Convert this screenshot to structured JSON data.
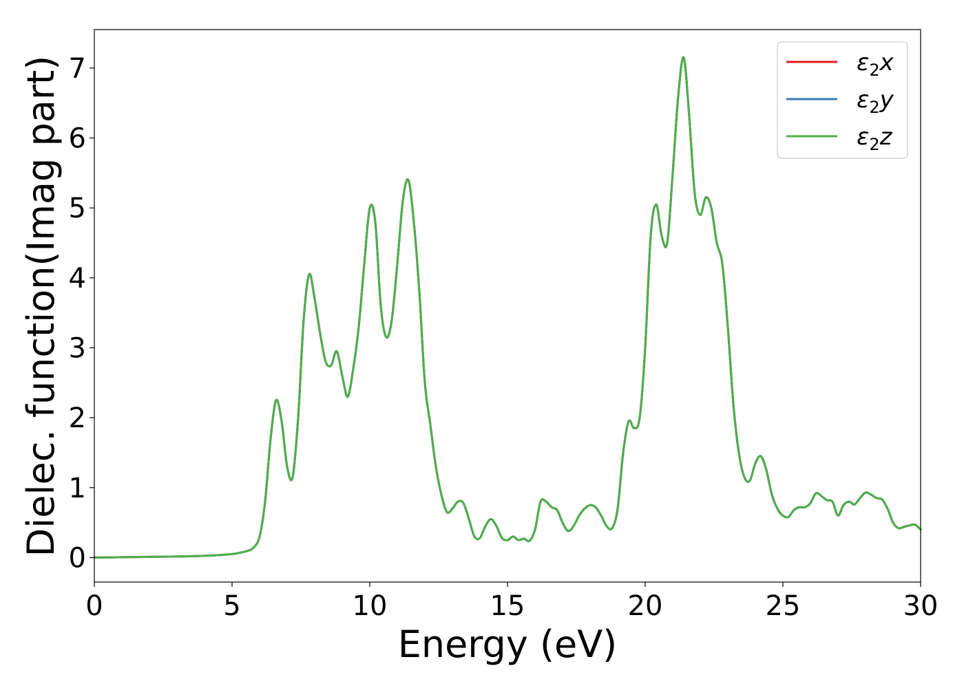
{
  "chart_data": {
    "type": "line",
    "title": "",
    "xlabel": "Energy (eV)",
    "ylabel": "Dielec. function(Imag part)",
    "xlim": [
      0,
      30
    ],
    "ylim": [
      -0.35,
      7.55
    ],
    "xticks": [
      0,
      5,
      10,
      15,
      20,
      25,
      30
    ],
    "yticks": [
      0,
      1,
      2,
      3,
      4,
      5,
      6,
      7
    ],
    "grid": false,
    "legend_position": "top-right",
    "x": [
      0,
      1,
      2,
      3,
      4,
      4.5,
      5,
      5.3,
      5.6,
      5.8,
      6.0,
      6.2,
      6.4,
      6.6,
      6.8,
      7.0,
      7.2,
      7.4,
      7.6,
      7.8,
      8.0,
      8.2,
      8.4,
      8.6,
      8.8,
      9.0,
      9.2,
      9.4,
      9.6,
      9.8,
      10.0,
      10.2,
      10.4,
      10.6,
      10.8,
      11.0,
      11.2,
      11.4,
      11.6,
      11.8,
      12.0,
      12.2,
      12.4,
      12.6,
      12.8,
      13.0,
      13.2,
      13.4,
      13.6,
      13.8,
      14.0,
      14.2,
      14.4,
      14.6,
      14.8,
      15.0,
      15.2,
      15.4,
      15.6,
      15.8,
      16.0,
      16.2,
      16.4,
      16.6,
      16.8,
      17.0,
      17.2,
      17.4,
      17.6,
      17.8,
      18.0,
      18.2,
      18.4,
      18.6,
      18.8,
      19.0,
      19.2,
      19.4,
      19.6,
      19.8,
      20.0,
      20.2,
      20.4,
      20.6,
      20.8,
      21.0,
      21.2,
      21.4,
      21.6,
      21.8,
      22.0,
      22.2,
      22.4,
      22.6,
      22.8,
      23.0,
      23.2,
      23.4,
      23.6,
      23.8,
      24.0,
      24.2,
      24.4,
      24.6,
      24.8,
      25.0,
      25.2,
      25.4,
      25.6,
      25.8,
      26.0,
      26.2,
      26.4,
      26.6,
      26.8,
      27.0,
      27.2,
      27.4,
      27.6,
      27.8,
      28.0,
      28.2,
      28.4,
      28.6,
      28.8,
      29.0,
      29.2,
      29.4,
      29.6,
      29.8,
      30.0
    ],
    "series": [
      {
        "name": "ε₂x",
        "color": "#e41a1c",
        "values": [
          0.0,
          0.005,
          0.01,
          0.015,
          0.025,
          0.035,
          0.05,
          0.07,
          0.1,
          0.15,
          0.3,
          0.8,
          1.7,
          2.25,
          1.95,
          1.3,
          1.15,
          2.0,
          3.4,
          4.05,
          3.7,
          3.2,
          2.8,
          2.75,
          2.95,
          2.6,
          2.3,
          2.7,
          3.3,
          4.2,
          5.0,
          4.8,
          3.6,
          3.15,
          3.4,
          4.2,
          5.1,
          5.4,
          4.8,
          3.8,
          2.5,
          1.9,
          1.3,
          0.9,
          0.65,
          0.7,
          0.8,
          0.78,
          0.55,
          0.3,
          0.28,
          0.45,
          0.55,
          0.45,
          0.28,
          0.25,
          0.3,
          0.25,
          0.27,
          0.24,
          0.4,
          0.8,
          0.8,
          0.72,
          0.68,
          0.5,
          0.38,
          0.45,
          0.6,
          0.7,
          0.75,
          0.72,
          0.6,
          0.45,
          0.42,
          0.7,
          1.5,
          1.95,
          1.85,
          2.0,
          3.0,
          4.6,
          5.05,
          4.6,
          4.5,
          5.5,
          6.6,
          7.15,
          6.3,
          5.2,
          4.9,
          5.15,
          5.0,
          4.5,
          4.2,
          3.3,
          2.2,
          1.5,
          1.15,
          1.1,
          1.35,
          1.45,
          1.25,
          0.9,
          0.7,
          0.6,
          0.58,
          0.68,
          0.72,
          0.72,
          0.78,
          0.92,
          0.88,
          0.82,
          0.8,
          0.6,
          0.75,
          0.8,
          0.76,
          0.85,
          0.93,
          0.9,
          0.85,
          0.83,
          0.7,
          0.5,
          0.42,
          0.44,
          0.46,
          0.47,
          0.4
        ]
      },
      {
        "name": "ε₂y",
        "color": "#377eb8",
        "values": [
          0.0,
          0.005,
          0.01,
          0.015,
          0.025,
          0.035,
          0.05,
          0.07,
          0.1,
          0.15,
          0.3,
          0.8,
          1.7,
          2.25,
          1.95,
          1.3,
          1.15,
          2.0,
          3.4,
          4.05,
          3.7,
          3.2,
          2.8,
          2.75,
          2.95,
          2.6,
          2.3,
          2.7,
          3.3,
          4.2,
          5.0,
          4.8,
          3.6,
          3.15,
          3.4,
          4.2,
          5.1,
          5.4,
          4.8,
          3.8,
          2.5,
          1.9,
          1.3,
          0.9,
          0.65,
          0.7,
          0.8,
          0.78,
          0.55,
          0.3,
          0.28,
          0.45,
          0.55,
          0.45,
          0.28,
          0.25,
          0.3,
          0.25,
          0.27,
          0.24,
          0.4,
          0.8,
          0.8,
          0.72,
          0.68,
          0.5,
          0.38,
          0.45,
          0.6,
          0.7,
          0.75,
          0.72,
          0.6,
          0.45,
          0.42,
          0.7,
          1.5,
          1.95,
          1.85,
          2.0,
          3.0,
          4.6,
          5.05,
          4.6,
          4.5,
          5.5,
          6.6,
          7.15,
          6.3,
          5.2,
          4.9,
          5.15,
          5.0,
          4.5,
          4.2,
          3.3,
          2.2,
          1.5,
          1.15,
          1.1,
          1.35,
          1.45,
          1.25,
          0.9,
          0.7,
          0.6,
          0.58,
          0.68,
          0.72,
          0.72,
          0.78,
          0.92,
          0.88,
          0.82,
          0.8,
          0.6,
          0.75,
          0.8,
          0.76,
          0.85,
          0.93,
          0.9,
          0.85,
          0.83,
          0.7,
          0.5,
          0.42,
          0.44,
          0.46,
          0.47,
          0.4
        ]
      },
      {
        "name": "ε₂z",
        "color": "#4daf4a",
        "values": [
          0.0,
          0.005,
          0.01,
          0.015,
          0.025,
          0.035,
          0.05,
          0.07,
          0.1,
          0.15,
          0.3,
          0.8,
          1.7,
          2.25,
          1.95,
          1.3,
          1.15,
          2.0,
          3.4,
          4.05,
          3.7,
          3.2,
          2.8,
          2.75,
          2.95,
          2.6,
          2.3,
          2.7,
          3.3,
          4.2,
          5.0,
          4.8,
          3.6,
          3.15,
          3.4,
          4.2,
          5.1,
          5.4,
          4.8,
          3.8,
          2.5,
          1.9,
          1.3,
          0.9,
          0.65,
          0.7,
          0.8,
          0.78,
          0.55,
          0.3,
          0.28,
          0.45,
          0.55,
          0.45,
          0.28,
          0.25,
          0.3,
          0.25,
          0.27,
          0.24,
          0.4,
          0.8,
          0.8,
          0.72,
          0.68,
          0.5,
          0.38,
          0.45,
          0.6,
          0.7,
          0.75,
          0.72,
          0.6,
          0.45,
          0.42,
          0.7,
          1.5,
          1.95,
          1.85,
          2.0,
          3.0,
          4.6,
          5.05,
          4.6,
          4.5,
          5.5,
          6.6,
          7.15,
          6.3,
          5.2,
          4.9,
          5.15,
          5.0,
          4.5,
          4.2,
          3.3,
          2.2,
          1.5,
          1.15,
          1.1,
          1.35,
          1.45,
          1.25,
          0.9,
          0.7,
          0.6,
          0.58,
          0.68,
          0.72,
          0.72,
          0.78,
          0.92,
          0.88,
          0.82,
          0.8,
          0.6,
          0.75,
          0.8,
          0.76,
          0.85,
          0.93,
          0.9,
          0.85,
          0.83,
          0.7,
          0.5,
          0.42,
          0.44,
          0.46,
          0.47,
          0.4
        ]
      }
    ],
    "legend": [
      {
        "symbol": "ε",
        "sub": "2",
        "axis": "x"
      },
      {
        "symbol": "ε",
        "sub": "2",
        "axis": "y"
      },
      {
        "symbol": "ε",
        "sub": "2",
        "axis": "z"
      }
    ]
  }
}
